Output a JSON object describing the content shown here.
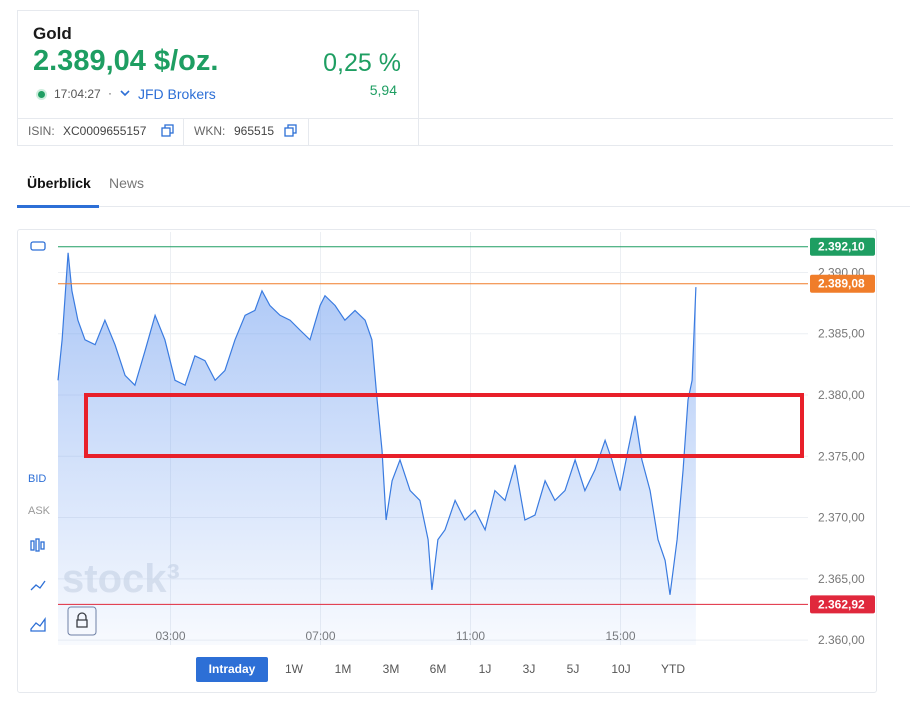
{
  "header": {
    "title": "Gold",
    "price": "2.389,04 $/oz.",
    "change_percent": "0,25 %",
    "change": "5,94",
    "time": "17:04:27",
    "separator": "·",
    "source": "JFD Brokers",
    "isin_label": "ISIN:",
    "isin": "XC0009655157",
    "wkn_label": "WKN:",
    "wkn": "965515"
  },
  "tabs": [
    "Überblick",
    "News"
  ],
  "sidebar": [
    "BID",
    "ASK"
  ],
  "watermark": "stock³",
  "ranges": [
    "Intraday",
    "1W",
    "1M",
    "3M",
    "6M",
    "1J",
    "3J",
    "5J",
    "10J",
    "YTD"
  ],
  "chart_data": {
    "type": "area",
    "color": "#3a7be0",
    "x": [
      0,
      0.11,
      0.27,
      0.37,
      0.53,
      0.72,
      0.99,
      1.25,
      1.52,
      1.79,
      2.05,
      2.32,
      2.59,
      2.85,
      3.12,
      3.39,
      3.65,
      3.92,
      4.19,
      4.45,
      4.72,
      4.99,
      5.25,
      5.44,
      5.65,
      5.92,
      6.19,
      6.45,
      6.72,
      6.99,
      7.12,
      7.39,
      7.65,
      7.92,
      8.19,
      8.37,
      8.51,
      8.64,
      8.75,
      8.91,
      9.12,
      9.39,
      9.65,
      9.87,
      9.97,
      10.13,
      10.32,
      10.59,
      10.85,
      11.12,
      11.39,
      11.65,
      11.92,
      12.19,
      12.45,
      12.72,
      12.99,
      13.25,
      13.52,
      13.79,
      14.05,
      14.32,
      14.59,
      14.77,
      14.99,
      15.2,
      15.39,
      15.57,
      15.79,
      16,
      16.19,
      16.32,
      16.51,
      16.67,
      16.8,
      16.91,
      17.01
    ],
    "values": [
      2381.2,
      2384.5,
      2391.6,
      2388.5,
      2386.1,
      2384.5,
      2384.1,
      2386.1,
      2384.1,
      2381.6,
      2380.8,
      2383.6,
      2386.5,
      2384.5,
      2381.2,
      2380.8,
      2383.2,
      2382.8,
      2381.2,
      2382.0,
      2384.5,
      2386.5,
      2386.9,
      2388.5,
      2387.3,
      2386.5,
      2386.1,
      2385.3,
      2384.5,
      2387.3,
      2388.1,
      2387.3,
      2386.1,
      2386.9,
      2386.1,
      2384.5,
      2379.6,
      2375.5,
      2369.8,
      2373.0,
      2374.7,
      2372.2,
      2371.4,
      2368.2,
      2364.1,
      2368.2,
      2369.0,
      2371.4,
      2369.8,
      2370.6,
      2369.0,
      2372.2,
      2371.4,
      2374.3,
      2369.8,
      2370.2,
      2373.0,
      2371.4,
      2372.2,
      2374.7,
      2372.2,
      2373.9,
      2376.3,
      2374.7,
      2372.2,
      2375.5,
      2378.3,
      2374.7,
      2372.2,
      2368.2,
      2366.5,
      2363.7,
      2368.2,
      2373.9,
      2379.6,
      2381.2,
      2388.8
    ],
    "xlim": [
      0,
      20
    ],
    "ylim": [
      2359.6,
      2393.3
    ],
    "xticks": [
      {
        "value": 3,
        "label": "03:00"
      },
      {
        "value": 7,
        "label": "07:00"
      },
      {
        "value": 11,
        "label": "11:00"
      },
      {
        "value": 15,
        "label": "15:00"
      }
    ],
    "yticks": [
      {
        "value": 2360,
        "label": "2.360,00"
      },
      {
        "value": 2365,
        "label": "2.365,00"
      },
      {
        "value": 2370,
        "label": "2.370,00"
      },
      {
        "value": 2375,
        "label": "2.375,00"
      },
      {
        "value": 2380,
        "label": "2.380,00"
      },
      {
        "value": 2385,
        "label": "2.385,00"
      },
      {
        "value": 2390,
        "label": "2.390,00"
      }
    ],
    "grid": true,
    "markers": [
      {
        "value": 2392.1,
        "label": "2.392,10",
        "color": "#1e9e62"
      },
      {
        "value": 2389.08,
        "label": "2.389,08",
        "color": "#f07d2a"
      },
      {
        "value": 2362.92,
        "label": "2.362,92",
        "color": "#e0283c"
      }
    ]
  }
}
